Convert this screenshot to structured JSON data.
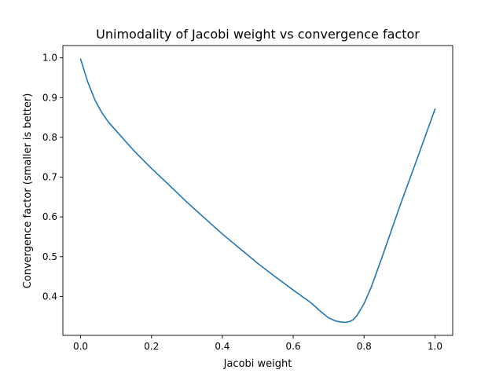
{
  "chart_data": {
    "type": "line",
    "title": "Unimodality of Jacobi weight vs convergence factor",
    "xlabel": "Jacobi weight",
    "ylabel": "Convergence factor (smaller is better)",
    "xlim": [
      -0.05,
      1.05
    ],
    "ylim": [
      0.302,
      1.031
    ],
    "xticks": [
      0.0,
      0.2,
      0.4,
      0.6,
      0.8,
      1.0
    ],
    "xtick_labels": [
      "0.0",
      "0.2",
      "0.4",
      "0.6",
      "0.8",
      "1.0"
    ],
    "yticks": [
      0.4,
      0.5,
      0.6,
      0.7,
      0.8,
      0.9,
      1.0
    ],
    "ytick_labels": [
      "0.4",
      "0.5",
      "0.6",
      "0.7",
      "0.8",
      "0.9",
      "1.0"
    ],
    "grid": false,
    "series": [
      {
        "color": "#1f77b4",
        "x": [
          0.0,
          0.02,
          0.04,
          0.06,
          0.08,
          0.1,
          0.15,
          0.2,
          0.25,
          0.3,
          0.35,
          0.4,
          0.45,
          0.5,
          0.55,
          0.6,
          0.65,
          0.68,
          0.7,
          0.72,
          0.74,
          0.75,
          0.76,
          0.77,
          0.78,
          0.8,
          0.82,
          0.85,
          0.9,
          0.95,
          1.0
        ],
        "y": [
          0.997,
          0.94,
          0.895,
          0.862,
          0.837,
          0.817,
          0.767,
          0.722,
          0.68,
          0.637,
          0.597,
          0.557,
          0.52,
          0.483,
          0.449,
          0.416,
          0.384,
          0.36,
          0.346,
          0.338,
          0.335,
          0.335,
          0.337,
          0.342,
          0.352,
          0.382,
          0.423,
          0.497,
          0.625,
          0.747,
          0.871
        ]
      }
    ]
  }
}
